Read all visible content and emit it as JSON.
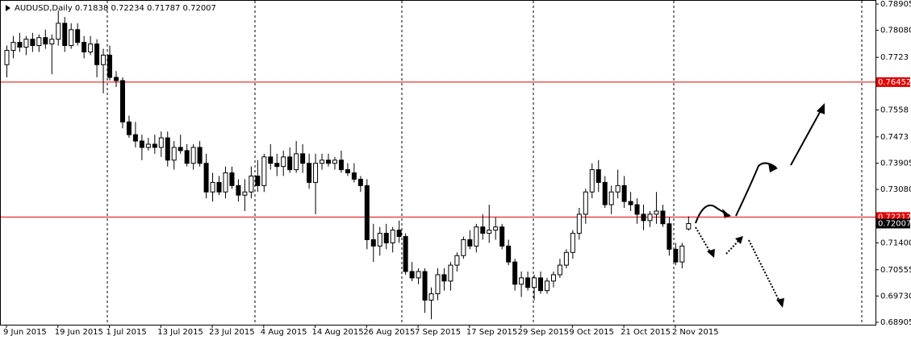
{
  "chart_data": {
    "type": "candlestick",
    "title": "AUDUSD,Daily",
    "candles": [
      [
        0.77,
        0.776,
        0.766,
        0.7745
      ],
      [
        0.7745,
        0.779,
        0.772,
        0.777
      ],
      [
        0.777,
        0.78,
        0.774,
        0.7755
      ],
      [
        0.7755,
        0.779,
        0.773,
        0.778
      ],
      [
        0.778,
        0.78,
        0.774,
        0.776
      ],
      [
        0.776,
        0.7795,
        0.774,
        0.7785
      ],
      [
        0.7785,
        0.781,
        0.775,
        0.7765
      ],
      [
        0.7765,
        0.7795,
        0.767,
        0.778
      ],
      [
        0.778,
        0.787,
        0.776,
        0.783
      ],
      [
        0.783,
        0.785,
        0.774,
        0.776
      ],
      [
        0.776,
        0.783,
        0.775,
        0.781
      ],
      [
        0.781,
        0.783,
        0.776,
        0.777
      ],
      [
        0.777,
        0.779,
        0.772,
        0.774
      ],
      [
        0.774,
        0.779,
        0.773,
        0.7765
      ],
      [
        0.7765,
        0.778,
        0.766,
        0.77
      ],
      [
        0.77,
        0.775,
        0.761,
        0.773
      ],
      [
        0.773,
        0.776,
        0.765,
        0.766
      ],
      [
        0.766,
        0.768,
        0.763,
        0.765
      ],
      [
        0.765,
        0.766,
        0.75,
        0.752
      ],
      [
        0.752,
        0.754,
        0.747,
        0.748
      ],
      [
        0.748,
        0.752,
        0.744,
        0.746
      ],
      [
        0.746,
        0.748,
        0.74,
        0.744
      ],
      [
        0.744,
        0.747,
        0.743,
        0.745
      ],
      [
        0.745,
        0.748,
        0.742,
        0.744
      ],
      [
        0.744,
        0.749,
        0.741,
        0.747
      ],
      [
        0.747,
        0.749,
        0.738,
        0.74
      ],
      [
        0.74,
        0.746,
        0.737,
        0.744
      ],
      [
        0.744,
        0.748,
        0.742,
        0.743
      ],
      [
        0.743,
        0.745,
        0.738,
        0.739
      ],
      [
        0.739,
        0.745,
        0.737,
        0.744
      ],
      [
        0.744,
        0.746,
        0.738,
        0.739
      ],
      [
        0.739,
        0.742,
        0.728,
        0.73
      ],
      [
        0.73,
        0.736,
        0.727,
        0.733
      ],
      [
        0.733,
        0.735,
        0.729,
        0.73
      ],
      [
        0.73,
        0.738,
        0.728,
        0.736
      ],
      [
        0.736,
        0.738,
        0.731,
        0.732
      ],
      [
        0.732,
        0.734,
        0.727,
        0.729
      ],
      [
        0.729,
        0.734,
        0.724,
        0.73
      ],
      [
        0.73,
        0.738,
        0.728,
        0.735
      ],
      [
        0.735,
        0.74,
        0.73,
        0.732
      ],
      [
        0.732,
        0.742,
        0.73,
        0.741
      ],
      [
        0.741,
        0.745,
        0.737,
        0.739
      ],
      [
        0.739,
        0.742,
        0.735,
        0.738
      ],
      [
        0.738,
        0.743,
        0.735,
        0.741
      ],
      [
        0.741,
        0.744,
        0.736,
        0.737
      ],
      [
        0.737,
        0.746,
        0.736,
        0.742
      ],
      [
        0.742,
        0.745,
        0.736,
        0.739
      ],
      [
        0.739,
        0.742,
        0.731,
        0.733
      ],
      [
        0.733,
        0.742,
        0.723,
        0.739
      ],
      [
        0.739,
        0.742,
        0.737,
        0.74
      ],
      [
        0.74,
        0.742,
        0.738,
        0.739
      ],
      [
        0.739,
        0.741,
        0.737,
        0.74
      ],
      [
        0.74,
        0.743,
        0.736,
        0.737
      ],
      [
        0.737,
        0.739,
        0.735,
        0.736
      ],
      [
        0.736,
        0.739,
        0.733,
        0.734
      ],
      [
        0.734,
        0.735,
        0.73,
        0.732
      ],
      [
        0.732,
        0.734,
        0.712,
        0.715
      ],
      [
        0.715,
        0.72,
        0.708,
        0.713
      ],
      [
        0.713,
        0.719,
        0.71,
        0.717
      ],
      [
        0.717,
        0.72,
        0.712,
        0.714
      ],
      [
        0.714,
        0.719,
        0.711,
        0.718
      ],
      [
        0.718,
        0.721,
        0.714,
        0.716
      ],
      [
        0.716,
        0.717,
        0.704,
        0.705
      ],
      [
        0.705,
        0.708,
        0.702,
        0.703
      ],
      [
        0.703,
        0.706,
        0.701,
        0.705
      ],
      [
        0.705,
        0.706,
        0.692,
        0.696
      ],
      [
        0.696,
        0.7,
        0.69,
        0.698
      ],
      [
        0.698,
        0.706,
        0.696,
        0.704
      ],
      [
        0.704,
        0.706,
        0.699,
        0.702
      ],
      [
        0.702,
        0.708,
        0.699,
        0.707
      ],
      [
        0.707,
        0.711,
        0.705,
        0.71
      ],
      [
        0.71,
        0.716,
        0.709,
        0.715
      ],
      [
        0.715,
        0.718,
        0.712,
        0.713
      ],
      [
        0.713,
        0.72,
        0.711,
        0.719
      ],
      [
        0.719,
        0.723,
        0.715,
        0.717
      ],
      [
        0.717,
        0.726,
        0.714,
        0.718
      ],
      [
        0.718,
        0.722,
        0.715,
        0.719
      ],
      [
        0.719,
        0.72,
        0.712,
        0.713
      ],
      [
        0.713,
        0.715,
        0.707,
        0.708
      ],
      [
        0.708,
        0.709,
        0.699,
        0.701
      ],
      [
        0.701,
        0.705,
        0.697,
        0.703
      ],
      [
        0.703,
        0.705,
        0.699,
        0.7
      ],
      [
        0.7,
        0.704,
        0.696,
        0.703
      ],
      [
        0.703,
        0.705,
        0.698,
        0.699
      ],
      [
        0.699,
        0.703,
        0.698,
        0.702
      ],
      [
        0.702,
        0.705,
        0.7,
        0.704
      ],
      [
        0.704,
        0.709,
        0.703,
        0.707
      ],
      [
        0.707,
        0.712,
        0.706,
        0.711
      ],
      [
        0.711,
        0.718,
        0.709,
        0.717
      ],
      [
        0.717,
        0.725,
        0.715,
        0.723
      ],
      [
        0.723,
        0.731,
        0.72,
        0.73
      ],
      [
        0.73,
        0.739,
        0.728,
        0.737
      ],
      [
        0.737,
        0.74,
        0.73,
        0.733
      ],
      [
        0.733,
        0.735,
        0.725,
        0.726
      ],
      [
        0.726,
        0.732,
        0.723,
        0.73
      ],
      [
        0.73,
        0.737,
        0.728,
        0.732
      ],
      [
        0.732,
        0.735,
        0.725,
        0.727
      ],
      [
        0.727,
        0.73,
        0.724,
        0.726
      ],
      [
        0.726,
        0.728,
        0.72,
        0.723
      ],
      [
        0.723,
        0.726,
        0.718,
        0.721
      ],
      [
        0.721,
        0.724,
        0.719,
        0.723
      ],
      [
        0.723,
        0.73,
        0.72,
        0.724
      ],
      [
        0.724,
        0.726,
        0.719,
        0.72
      ],
      [
        0.72,
        0.722,
        0.71,
        0.712
      ],
      [
        0.712,
        0.714,
        0.707,
        0.708
      ],
      [
        0.708,
        0.714,
        0.706,
        0.713
      ],
      [
        0.71838,
        0.72234,
        0.71787,
        0.72007
      ]
    ],
    "ylim": [
      0.68829,
      0.79032
    ],
    "yticks": [
      0.78905,
      {
        "value": 0.7808,
        "label": "0.78080"
      },
      0.7723,
      0.7558,
      0.7473,
      0.73905,
      {
        "value": 0.7308,
        "label": "0.73080"
      },
      {
        "value": 0.714,
        "label": "0.71400"
      },
      0.70555,
      {
        "value": 0.6973,
        "label": "0.69730"
      },
      0.68905
    ],
    "xticks": [
      {
        "value": 0,
        "label": "9 Jun 2015"
      },
      {
        "value": 8,
        "label": "19 Jun 2015"
      },
      {
        "value": 16,
        "label": "1 Jul 2015"
      },
      {
        "value": 24,
        "label": "13 Jul 2015"
      },
      {
        "value": 32,
        "label": "23 Jul 2015"
      },
      {
        "value": 40,
        "label": "4 Aug 2015"
      },
      {
        "value": 48,
        "label": "14 Aug 2015"
      },
      {
        "value": 56,
        "label": "26 Aug 2015"
      },
      {
        "value": 64,
        "label": "7 Sep 2015"
      },
      {
        "value": 72,
        "label": "17 Sep 2015"
      },
      {
        "value": 80,
        "label": "29 Sep 2015"
      },
      {
        "value": 88,
        "label": "9 Oct 2015"
      },
      {
        "value": 96,
        "label": "21 Oct 2015"
      },
      {
        "value": 104,
        "label": "2 Nov 2015"
      }
    ],
    "hlines": [
      {
        "value": 0.76452,
        "color": "#e00000"
      },
      {
        "value": 0.72212,
        "color": "#e00000"
      }
    ],
    "up_color": "#ffffff",
    "down_color": "#000000"
  }
}
